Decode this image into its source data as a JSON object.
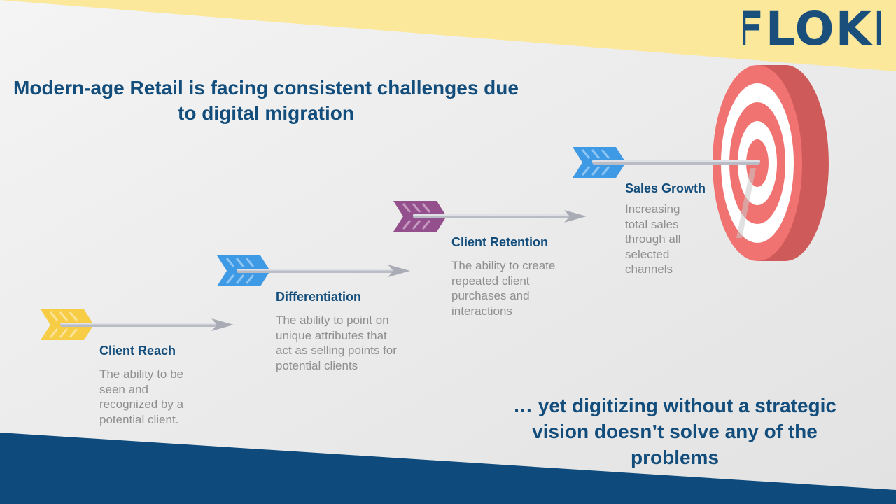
{
  "brand": {
    "logo_text": "FLOKI"
  },
  "headline": "Modern-age Retail is facing consistent challenges due to digital migration",
  "steps": [
    {
      "title": "Client Reach",
      "description": "The ability to be seen and recognized by a potential client.",
      "color": "#f7cd46"
    },
    {
      "title": "Differentiation",
      "description": "The ability to point on unique attributes that act as selling points for potential clients",
      "color": "#3f9ae6"
    },
    {
      "title": "Client Retention",
      "description": "The ability to create repeated client purchases and interactions",
      "color": "#94508d"
    },
    {
      "title": "Sales Growth",
      "description": "Increasing total sales through all selected channels",
      "color": "#3f9ae6"
    }
  ],
  "tagline": "… yet digitizing without a strategic vision doesn’t solve any of the problems",
  "colors": {
    "navy": "#0e4a7b",
    "yellow": "#fbe89a",
    "target_red": "#f07372",
    "text_blue": "#124d7c"
  }
}
